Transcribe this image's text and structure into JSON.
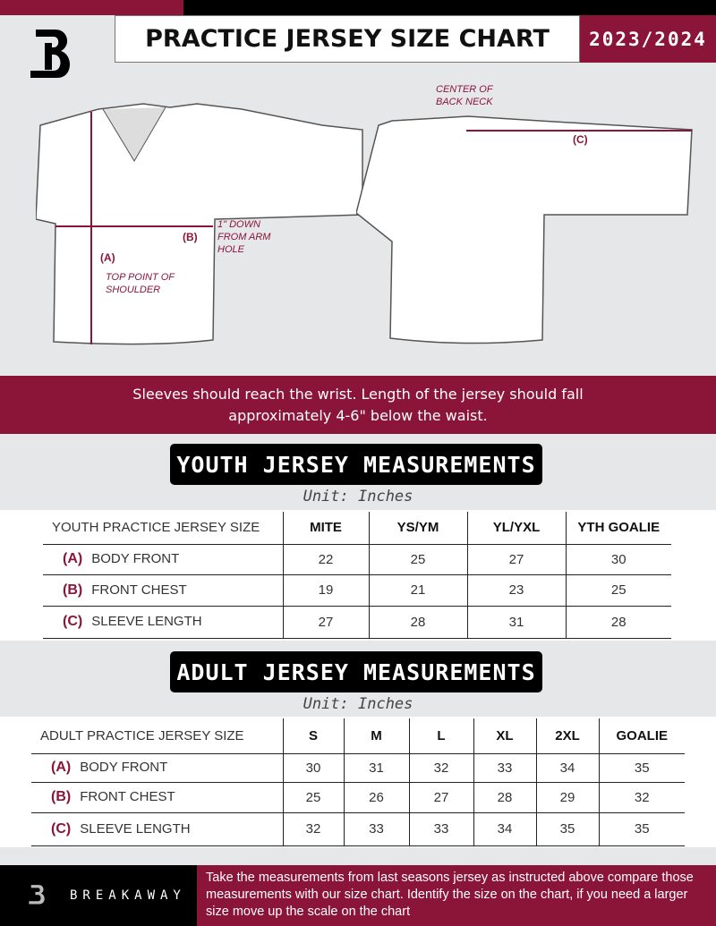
{
  "header": {
    "title": "PRACTICE JERSEY SIZE CHART",
    "season": "2023/2024"
  },
  "diagram": {
    "front_labels": {
      "a": "(A)",
      "a_note": "TOP POINT OF SHOULDER",
      "b": "(B)",
      "b_note": "1\" DOWN FROM ARM HOLE"
    },
    "back_labels": {
      "c": "(C)",
      "c_note": "CENTER OF BACK NECK"
    }
  },
  "instructions": "Sleeves should reach the wrist. Length of the jersey should fall approximately 4-6\" below the waist.",
  "youth": {
    "title": "YOUTH JERSEY MEASUREMENTS",
    "unit": "Unit: Inches",
    "headers": [
      "YOUTH PRACTICE JERSEY SIZE",
      "MITE",
      "YS/YM",
      "YL/YXL",
      "YTH GOALIE"
    ],
    "rows": [
      {
        "code": "(A)",
        "label": "BODY FRONT",
        "values": [
          "22",
          "25",
          "27",
          "30"
        ]
      },
      {
        "code": "(B)",
        "label": "FRONT CHEST",
        "values": [
          "19",
          "21",
          "23",
          "25"
        ]
      },
      {
        "code": "(C)",
        "label": "SLEEVE LENGTH",
        "values": [
          "27",
          "28",
          "31",
          "28"
        ]
      }
    ]
  },
  "adult": {
    "title": "ADULT JERSEY MEASUREMENTS",
    "unit": "Unit: Inches",
    "headers": [
      "ADULT PRACTICE JERSEY SIZE",
      "S",
      "M",
      "L",
      "XL",
      "2XL",
      "GOALIE"
    ],
    "rows": [
      {
        "code": "(A)",
        "label": "BODY FRONT",
        "values": [
          "30",
          "31",
          "32",
          "33",
          "34",
          "35"
        ]
      },
      {
        "code": "(B)",
        "label": "FRONT CHEST",
        "values": [
          "25",
          "26",
          "27",
          "28",
          "29",
          "32"
        ]
      },
      {
        "code": "(C)",
        "label": "SLEEVE LENGTH",
        "values": [
          "32",
          "33",
          "33",
          "34",
          "35",
          "35"
        ]
      }
    ]
  },
  "footer": {
    "brand": "BREAKAWAY",
    "text": "Take the measurements from last seasons jersey as instructed above compare those measurements  with our size chart. Identify the size on the chart, if you need a larger size move up the scale on the chart"
  },
  "colors": {
    "accent": "#8a1538",
    "dark": "#000000",
    "background": "#e6e7e8"
  }
}
